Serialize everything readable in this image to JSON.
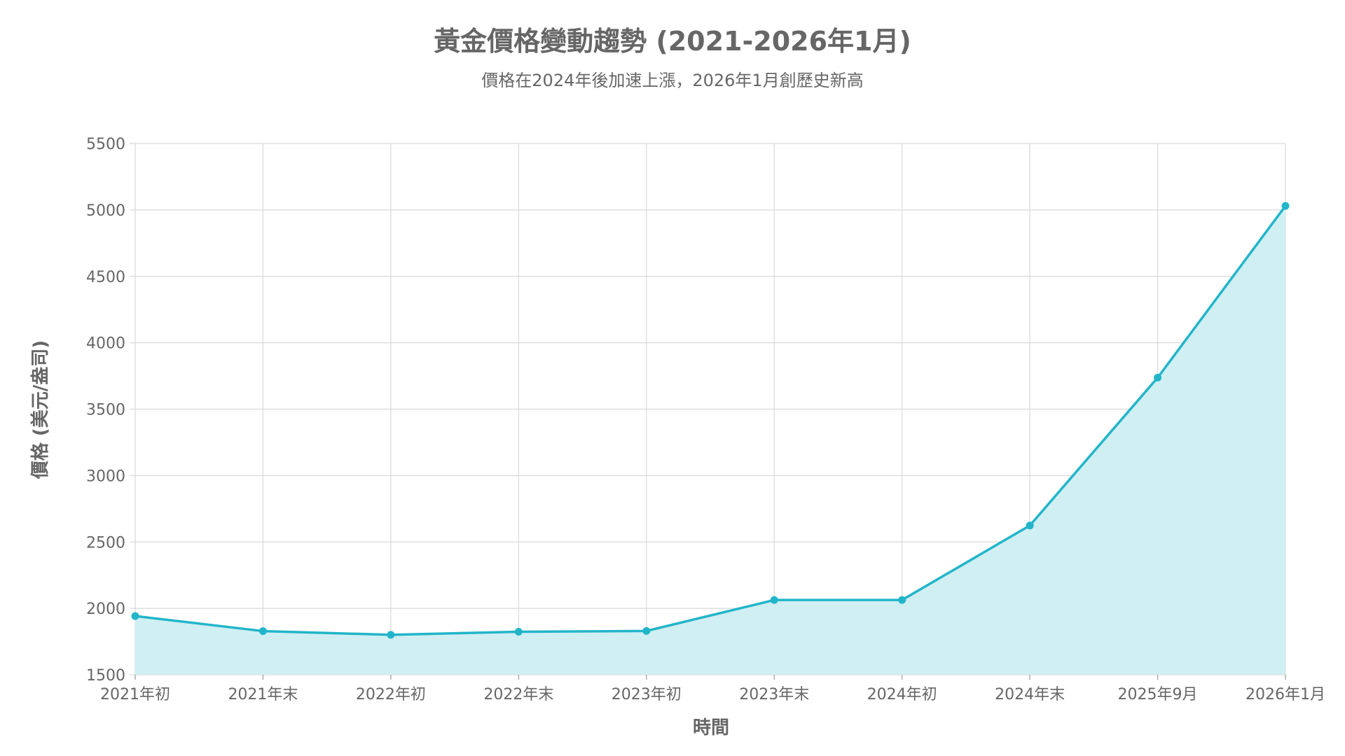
{
  "chart_data": {
    "type": "area",
    "title": "黃金價格變動趨勢 (2021-2026年1月)",
    "subtitle": "價格在2024年後加速上漲，2026年1月創歷史新高",
    "xlabel": "時間",
    "ylabel": "價格 (美元/盎司)",
    "categories": [
      "2021年初",
      "2021年末",
      "2022年初",
      "2022年末",
      "2023年初",
      "2023年末",
      "2024年初",
      "2024年末",
      "2025年9月",
      "2026年1月"
    ],
    "series": [
      {
        "values": [
          1942,
          1829,
          1801,
          1824,
          1830,
          2063,
          2063,
          2624,
          3737,
          5030
        ]
      }
    ],
    "ylim": [
      1500,
      5500
    ],
    "yticks": [
      1500,
      2000,
      2500,
      3000,
      3500,
      4000,
      4500,
      5000,
      5500
    ],
    "grid": true,
    "legend": "none",
    "colors": {
      "line": "#22b5c9",
      "fill": "#d0eff3",
      "grid": "#d9d9d9",
      "text": "#666666"
    }
  }
}
